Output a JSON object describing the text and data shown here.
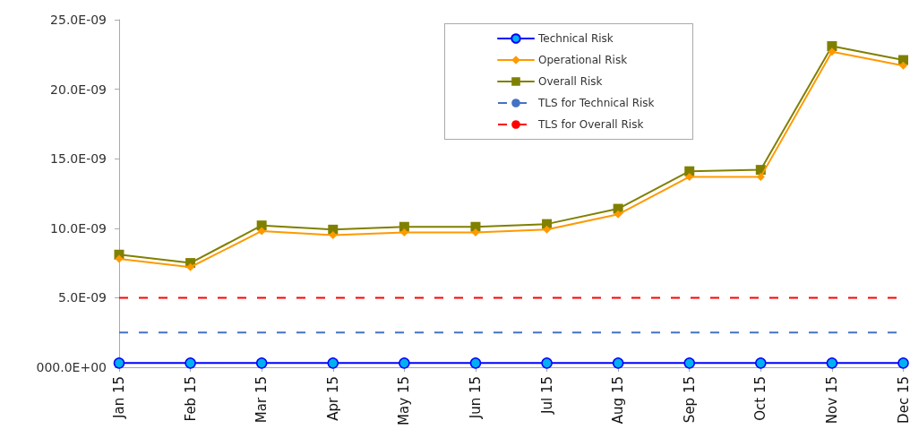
{
  "chart_data": {
    "type": "line",
    "categories": [
      "Jan 15",
      "Feb 15",
      "Mar 15",
      "Apr 15",
      "May 15",
      "Jun 15",
      "Jul 15",
      "Aug 15",
      "Sep 15",
      "Oct 15",
      "Nov 15",
      "Dec 15"
    ],
    "series": [
      {
        "name": "Technical Risk",
        "color": "#0000ff",
        "marker": "circle",
        "values": [
          3e-10,
          3e-10,
          3e-10,
          3e-10,
          3e-10,
          3e-10,
          3e-10,
          3e-10,
          3e-10,
          3e-10,
          3e-10,
          3e-10
        ]
      },
      {
        "name": "Operational Risk",
        "color": "#ff9900",
        "marker": "diamond",
        "values": [
          7.8e-09,
          7.2e-09,
          9.8e-09,
          9.5e-09,
          9.7e-09,
          9.7e-09,
          9.9e-09,
          1.1e-08,
          1.37e-08,
          1.37e-08,
          2.27e-08,
          2.17e-08
        ]
      },
      {
        "name": "Overall Risk",
        "color": "#808000",
        "marker": "square",
        "values": [
          8.1e-09,
          7.5e-09,
          1.02e-08,
          9.9e-09,
          1.01e-08,
          1.01e-08,
          1.03e-08,
          1.14e-08,
          1.41e-08,
          1.42e-08,
          2.31e-08,
          2.21e-08
        ]
      }
    ],
    "ref_lines": [
      {
        "axis": "y",
        "value": 2.5e-09,
        "label": "TLS for Technical Risk",
        "color": "#4472c4",
        "line_style": "dashed"
      },
      {
        "axis": "y",
        "value": 5e-09,
        "label": "TLS for Overall Risk",
        "color": "#ff0000",
        "line_style": "dashed"
      }
    ],
    "ylim": [
      0,
      2.5e-08
    ],
    "yticks": [
      {
        "value": 0,
        "label": "000.0E+00"
      },
      {
        "value": 5e-09,
        "label": "5.0E-09"
      },
      {
        "value": 1e-08,
        "label": "10.0E-09"
      },
      {
        "value": 1.5e-08,
        "label": "15.0E-09"
      },
      {
        "value": 2e-08,
        "label": "20.0E-09"
      },
      {
        "value": 2.5e-08,
        "label": "25.0E-09"
      }
    ],
    "grid": false,
    "legend": "top right",
    "line_style": "solid"
  }
}
